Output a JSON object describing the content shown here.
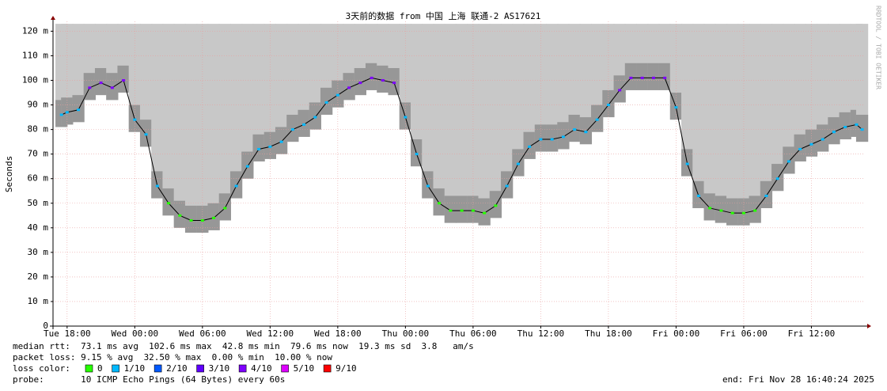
{
  "chart_data": {
    "type": "smokeping",
    "title": "3天前的数据 from 中国 上海 联通-2 AS17621",
    "y_label": "Seconds",
    "watermark": "RRDTOOL / TOBI OETIKER",
    "xlim": [
      -1.25,
      70.67
    ],
    "xticks": [
      {
        "value": 0,
        "label": "Tue 18:00"
      },
      {
        "value": 6,
        "label": "Wed 00:00"
      },
      {
        "value": 12,
        "label": "Wed 06:00"
      },
      {
        "value": 18,
        "label": "Wed 12:00"
      },
      {
        "value": 24,
        "label": "Wed 18:00"
      },
      {
        "value": 30,
        "label": "Thu 00:00"
      },
      {
        "value": 36,
        "label": "Thu 06:00"
      },
      {
        "value": 42,
        "label": "Thu 12:00"
      },
      {
        "value": 48,
        "label": "Thu 18:00"
      },
      {
        "value": 54,
        "label": "Fri 00:00"
      },
      {
        "value": 60,
        "label": "Fri 06:00"
      },
      {
        "value": 66,
        "label": "Fri 12:00"
      }
    ],
    "ylim": [
      0,
      124
    ],
    "yticks": [
      0,
      {
        "value": 10,
        "label": "10 m"
      },
      {
        "value": 20,
        "label": "20 m"
      },
      {
        "value": 30,
        "label": "30 m"
      },
      {
        "value": 40,
        "label": "40 m"
      },
      {
        "value": 50,
        "label": "50 m"
      },
      {
        "value": 60,
        "label": "60 m"
      },
      {
        "value": 70,
        "label": "70 m"
      },
      {
        "value": 80,
        "label": "80 m"
      },
      {
        "value": 90,
        "label": "90 m"
      },
      {
        "value": 100,
        "label": "100 m"
      },
      {
        "value": 110,
        "label": "110 m"
      },
      {
        "value": 120,
        "label": "120 m"
      }
    ],
    "grid": true,
    "x": [
      -0.5,
      0,
      1,
      2,
      3,
      4,
      5,
      6,
      7,
      8,
      9,
      10,
      11,
      12,
      13,
      14,
      15,
      16,
      17,
      18,
      19,
      20,
      21,
      22,
      23,
      24,
      25,
      26,
      27,
      28,
      29,
      30,
      31,
      32,
      33,
      34,
      35,
      36,
      37,
      38,
      39,
      40,
      41,
      42,
      43,
      44,
      45,
      46,
      47,
      48,
      49,
      50,
      51,
      52,
      53,
      54,
      55,
      56,
      57,
      58,
      59,
      60,
      61,
      62,
      63,
      64,
      65,
      66,
      67,
      68,
      69,
      70,
      70.5
    ],
    "median": [
      86,
      87,
      88,
      97,
      99,
      97,
      100,
      84,
      78,
      57,
      50,
      45,
      43,
      43,
      44,
      48,
      57,
      65,
      72,
      73,
      75,
      80,
      82,
      85,
      91,
      94,
      97,
      99,
      101,
      100,
      99,
      85,
      70,
      57,
      50,
      47,
      47,
      47,
      46,
      49,
      57,
      66,
      73,
      76,
      76,
      77,
      80,
      79,
      84,
      90,
      96,
      101,
      101,
      101,
      101,
      89,
      66,
      53,
      48,
      47,
      46,
      46,
      47,
      53,
      60,
      67,
      72,
      74,
      76,
      79,
      81,
      82,
      80
    ],
    "point_colors": [
      "#00b8ff",
      "#00b8ff",
      "#00b8ff",
      "#7e00ff",
      "#7e00ff",
      "#7e00ff",
      "#7e00ff",
      "#00b8ff",
      "#00b8ff",
      "#00b8ff",
      "#26ff00",
      "#26ff00",
      "#26ff00",
      "#26ff00",
      "#26ff00",
      "#26ff00",
      "#00b8ff",
      "#00b8ff",
      "#00b8ff",
      "#00b8ff",
      "#00b8ff",
      "#00b8ff",
      "#00b8ff",
      "#00b8ff",
      "#00b8ff",
      "#00b8ff",
      "#7e00ff",
      "#7e00ff",
      "#7e00ff",
      "#7e00ff",
      "#7e00ff",
      "#00b8ff",
      "#00b8ff",
      "#00b8ff",
      "#26ff00",
      "#26ff00",
      "#26ff00",
      "#26ff00",
      "#26ff00",
      "#26ff00",
      "#00b8ff",
      "#00b8ff",
      "#00b8ff",
      "#00b8ff",
      "#00b8ff",
      "#00b8ff",
      "#00b8ff",
      "#00b8ff",
      "#00b8ff",
      "#00b8ff",
      "#7e00ff",
      "#7e00ff",
      "#7e00ff",
      "#7e00ff",
      "#7e00ff",
      "#00b8ff",
      "#00b8ff",
      "#00b8ff",
      "#26ff00",
      "#26ff00",
      "#26ff00",
      "#26ff00",
      "#26ff00",
      "#00b8ff",
      "#00b8ff",
      "#00b8ff",
      "#00b8ff",
      "#00b8ff",
      "#00b8ff",
      "#00b8ff",
      "#00b8ff",
      "#00b8ff",
      "#00b8ff"
    ],
    "smoke_low": [
      81,
      82,
      83,
      92,
      94,
      92,
      95,
      79,
      73,
      52,
      45,
      40,
      38,
      38,
      39,
      43,
      52,
      60,
      67,
      68,
      70,
      75,
      77,
      80,
      86,
      89,
      92,
      94,
      96,
      95,
      94,
      80,
      65,
      52,
      45,
      42,
      42,
      42,
      41,
      44,
      52,
      61,
      68,
      71,
      71,
      72,
      75,
      74,
      79,
      85,
      91,
      96,
      96,
      96,
      96,
      84,
      61,
      48,
      43,
      42,
      41,
      41,
      42,
      48,
      55,
      62,
      67,
      69,
      71,
      74,
      76,
      77,
      75
    ],
    "smoke_top": 123,
    "stats": [
      "median rtt:  73.1 ms avg  102.6 ms max  42.8 ms min  79.6 ms now  19.3 ms sd  3.8   am/s",
      "packet loss: 9.15 % avg  32.50 % max  0.00 % min  10.00 % now"
    ],
    "legend_title": "loss color:",
    "legend": [
      {
        "label": "0",
        "color": "#26ff00"
      },
      {
        "label": "1/10",
        "color": "#00b8ff"
      },
      {
        "label": "2/10",
        "color": "#0059ff"
      },
      {
        "label": "3/10",
        "color": "#5e00ff"
      },
      {
        "label": "4/10",
        "color": "#7e00ff"
      },
      {
        "label": "5/10",
        "color": "#dd00ff"
      },
      {
        "label": "9/10",
        "color": "#ff0000"
      }
    ],
    "probe": "probe:       10 ICMP Echo Pings (64 Bytes) every 60s",
    "end": "end: Fri Nov 28 16:40:24 2025"
  }
}
